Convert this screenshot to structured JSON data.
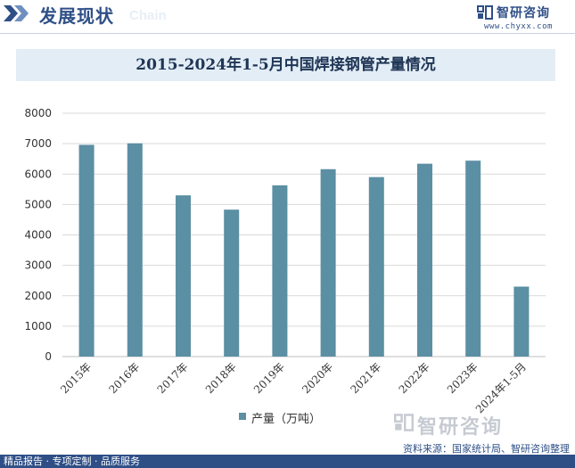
{
  "header": {
    "title": "发展现状",
    "subtitle_en": "Chain",
    "brand_name": "智研咨询",
    "brand_url": "www.chyxx.com"
  },
  "footer": {
    "left_text": "精品报告 · 专项定制 · 品质服务",
    "source": "资料来源：国家统计局、智研咨询整理",
    "watermark_brand": "智研咨询"
  },
  "colors": {
    "bar": "#5b8fa3",
    "grid": "#d9d9d9",
    "title_band": "#e3edf6",
    "footer": "#2e4f86"
  },
  "chart_data": {
    "type": "bar",
    "title": "2015-2024年1-5月中国焊接钢管产量情况",
    "categories": [
      "2015年",
      "2016年",
      "2017年",
      "2018年",
      "2019年",
      "2020年",
      "2021年",
      "2022年",
      "2023年",
      "2024年1-5月"
    ],
    "series": [
      {
        "name": "产量（万吨）",
        "values": [
          6960,
          7010,
          5300,
          4830,
          5630,
          6160,
          5900,
          6340,
          6440,
          2300
        ]
      }
    ],
    "y_ticks": [
      "0",
      "1000",
      "2000",
      "3000",
      "4000",
      "5000",
      "6000",
      "7000",
      "8000"
    ],
    "ylim": [
      0,
      8000
    ],
    "xlabel": "",
    "ylabel": "",
    "grid": true,
    "legend_position": "bottom"
  }
}
